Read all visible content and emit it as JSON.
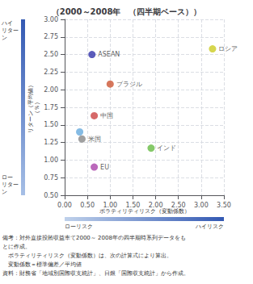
{
  "chart_data": {
    "type": "scatter",
    "title": "（2000～2008年　（四半期ベース））",
    "x": [
      0.6,
      1.0,
      0.65,
      0.38,
      0.33,
      1.9,
      0.65,
      3.25
    ],
    "values": [
      2.5,
      2.08,
      1.63,
      1.3,
      1.4,
      1.17,
      0.9,
      2.58
    ],
    "colors": [
      "#3333aa",
      "#cc5533",
      "#cc4444",
      "#888888",
      "#66aadd",
      "#66bb44",
      "#aa44aa",
      "#cccc22"
    ],
    "labels": [
      "ASEAN",
      "ブラジル",
      "中国",
      "米国",
      null,
      "インド",
      "EU",
      "ロシア"
    ],
    "xlim": [
      0,
      3.5
    ],
    "ylim": [
      0.5,
      3
    ],
    "xticks": [
      {
        "value": 0,
        "label": "0.00"
      },
      {
        "value": 0.5,
        "label": "0.50"
      },
      {
        "value": 1,
        "label": "1.00"
      },
      {
        "value": 1.5,
        "label": "1.50"
      },
      {
        "value": 2,
        "label": "2.00"
      },
      {
        "value": 2.5,
        "label": "2.50"
      },
      {
        "value": 3,
        "label": "3.00"
      },
      {
        "value": 3.5,
        "label": "3.50"
      }
    ],
    "yticks": [
      {
        "value": 0.5,
        "label": "0.50"
      },
      {
        "value": 0.75,
        "label": "0.75"
      },
      {
        "value": 1,
        "label": "1.00"
      },
      {
        "value": 1.25,
        "label": "1.25"
      },
      {
        "value": 1.5,
        "label": "1.50"
      },
      {
        "value": 1.75,
        "label": "1.75"
      },
      {
        "value": 2,
        "label": "2.00"
      },
      {
        "value": 2.25,
        "label": "2.25"
      },
      {
        "value": 2.5,
        "label": "2.50"
      },
      {
        "value": 2.75,
        "label": "2.75"
      },
      {
        "value": 3,
        "label": "3.00"
      }
    ],
    "grid": true,
    "ylabel": "リターン（平均値）\n（％）",
    "xlabel": "ボラティリティリスク（変動係数）",
    "annotations": {
      "y_high": "ハイ\nリター\nン",
      "y_low": "ロー\nリター\nン",
      "x_low": "ローリスク",
      "x_high": "ハイリスク"
    },
    "notes": [
      "備考：対外直接投賄収益率て2000～ 2008年の四半期時系列データをも",
      "とに作成。",
      "　ボラティリティリスク（変動係数）は、次の計算式により算出。",
      "　変動係数＝標準偏差／平均値",
      "資料：財務省「地域別国際収支統計」、日銀「国際収支統計」から作成。"
    ]
  }
}
